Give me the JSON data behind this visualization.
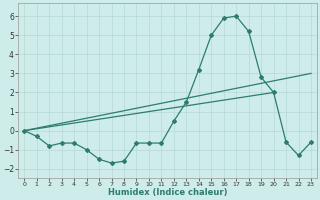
{
  "xlabel": "Humidex (Indice chaleur)",
  "line_color": "#2d7d6f",
  "background_color": "#ceecea",
  "grid_color": "#b8d8d5",
  "xlim": [
    -0.5,
    23.5
  ],
  "ylim": [
    -2.5,
    6.7
  ],
  "yticks": [
    -2,
    -1,
    0,
    1,
    2,
    3,
    4,
    5,
    6
  ],
  "xticks": [
    0,
    1,
    2,
    3,
    4,
    5,
    6,
    7,
    8,
    9,
    10,
    11,
    12,
    13,
    14,
    15,
    16,
    17,
    18,
    19,
    20,
    21,
    22,
    23
  ],
  "main_x": [
    0,
    1,
    2,
    3,
    4,
    5,
    6,
    7,
    8,
    9,
    10,
    11,
    12,
    13,
    14,
    15,
    16,
    17,
    18,
    19,
    20,
    21,
    22,
    23
  ],
  "main_y": [
    0.0,
    -0.3,
    -0.8,
    -0.65,
    -0.65,
    -1.0,
    -1.5,
    -1.7,
    -1.6,
    -0.65,
    -0.65,
    -0.65,
    0.5,
    1.5,
    3.2,
    5.0,
    5.9,
    6.0,
    5.2,
    2.8,
    2.0,
    -0.6,
    -1.3,
    -0.6
  ],
  "trend1_x": [
    0,
    23
  ],
  "trend1_y": [
    0.0,
    3.0
  ],
  "trend2_x": [
    0,
    20
  ],
  "trend2_y": [
    0.0,
    2.0
  ]
}
